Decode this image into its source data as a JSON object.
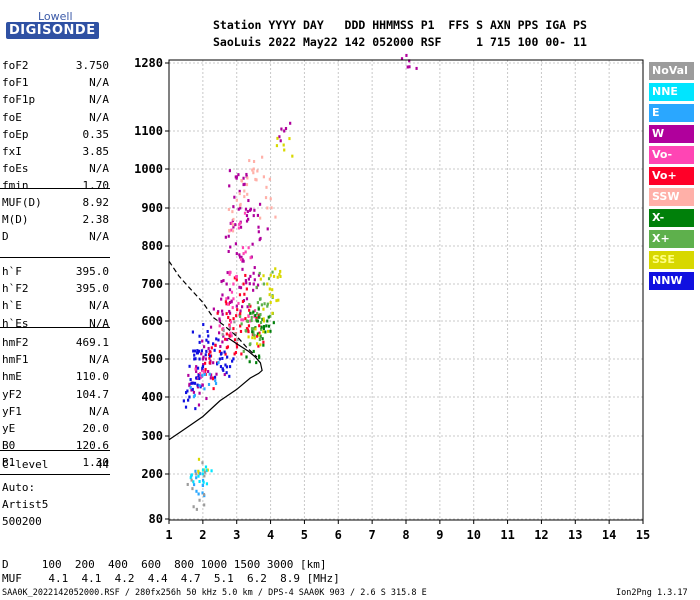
{
  "logo": {
    "top": "Lowell",
    "bottom": "DIGISONDE"
  },
  "header": {
    "line1": "Station YYYY DAY   DDD HHMMSS P1  FFS S AXN PPS IGA PS",
    "line2": "SaoLuis 2022 May22 142 052000 RSF     1 715 100 00- 11"
  },
  "params_group1": [
    {
      "k": "foF2",
      "v": "3.750"
    },
    {
      "k": "foF1",
      "v": "N/A"
    },
    {
      "k": "foF1p",
      "v": "N/A"
    },
    {
      "k": "foE",
      "v": "N/A"
    },
    {
      "k": "foEp",
      "v": "0.35"
    },
    {
      "k": "fxI",
      "v": "3.85"
    },
    {
      "k": "foEs",
      "v": "N/A"
    },
    {
      "k": "fmin",
      "v": "1.70"
    }
  ],
  "params_group2": [
    {
      "k": "MUF(D)",
      "v": "8.92"
    },
    {
      "k": "M(D)",
      "v": "2.38"
    },
    {
      "k": "D",
      "v": "N/A"
    }
  ],
  "params_group3": [
    {
      "k": "h`F",
      "v": "395.0"
    },
    {
      "k": "h`F2",
      "v": "395.0"
    },
    {
      "k": "h`E",
      "v": "N/A"
    },
    {
      "k": "h`Es",
      "v": "N/A"
    }
  ],
  "params_group4": [
    {
      "k": "hmF2",
      "v": "469.1"
    },
    {
      "k": "hmF1",
      "v": "N/A"
    },
    {
      "k": "hmE",
      "v": "110.0"
    },
    {
      "k": "yF2",
      "v": "104.7"
    },
    {
      "k": "yF1",
      "v": "N/A"
    },
    {
      "k": "yE",
      "v": "20.0"
    },
    {
      "k": "B0",
      "v": "120.6"
    },
    {
      "k": "B1",
      "v": "1.30"
    }
  ],
  "params_group5": [
    {
      "k": "C-level",
      "v": "44"
    }
  ],
  "auto": {
    "label": "Auto:",
    "artist": "Artist5",
    "version": "500200"
  },
  "legend": [
    {
      "label": "NoVal",
      "color": "#9c9c9c"
    },
    {
      "label": "NNE",
      "color": "#00e5ff"
    },
    {
      "label": "E",
      "color": "#2aa7ff"
    },
    {
      "label": "W",
      "color": "#b0009c"
    },
    {
      "label": "Vo-",
      "color": "#ff45b4"
    },
    {
      "label": "Vo+",
      "color": "#ff0028"
    },
    {
      "label": "SSW",
      "color": "#ffb0a8"
    },
    {
      "label": "X-",
      "color": "#00800a"
    },
    {
      "label": "X+",
      "color": "#5eb04c"
    },
    {
      "label": "SSE",
      "color": "#d8d800"
    },
    {
      "label": "NNW",
      "color": "#1010e0"
    }
  ],
  "footer": {
    "d_line": "D     100  200  400  600  800 1000 1500 3000 [km]",
    "muf_line": "MUF    4.1  4.1  4.2  4.4  4.7  5.1  6.2  8.9 [MHz]",
    "info_left": "SAA0K_2022142052000.RSF / 280fx256h 50 kHz 5.0 km / DPS-4 SAA0K 903 / 2.6 S 315.8 E",
    "info_right": "Ion2Png 1.3.17"
  },
  "chart_data": {
    "type": "scatter",
    "x_range": [
      1,
      15
    ],
    "y_range": [
      80,
      1280
    ],
    "x_ticks": [
      1,
      2,
      3,
      4,
      5,
      6,
      7,
      8,
      9,
      10,
      11,
      12,
      13,
      14,
      15
    ],
    "y_ticks": [
      80,
      200,
      300,
      400,
      500,
      600,
      700,
      800,
      900,
      1000,
      1100,
      1280
    ],
    "y_scale": "nonlinear (virtual height, km)",
    "grid": true,
    "profile_solid": [
      [
        1.0,
        290
      ],
      [
        1.5,
        320
      ],
      [
        2.0,
        350
      ],
      [
        2.5,
        390
      ],
      [
        3.0,
        420
      ],
      [
        3.4,
        450
      ],
      [
        3.65,
        462
      ],
      [
        3.75,
        470
      ],
      [
        3.7,
        490
      ],
      [
        3.55,
        505
      ],
      [
        3.35,
        520
      ],
      [
        3.0,
        540
      ],
      [
        2.75,
        555
      ]
    ],
    "profile_dashed": [
      [
        1.0,
        760
      ],
      [
        1.3,
        720
      ],
      [
        1.6,
        690
      ],
      [
        2.0,
        650
      ],
      [
        2.3,
        610
      ],
      [
        2.6,
        590
      ],
      [
        3.0,
        560
      ],
      [
        3.3,
        530
      ],
      [
        3.6,
        505
      ]
    ],
    "echo_clusters": [
      {
        "series": "W",
        "points": [
          [
            3.0,
            980
          ],
          [
            3.2,
            960
          ],
          [
            3.1,
            900
          ],
          [
            3.3,
            880
          ],
          [
            2.9,
            850
          ],
          [
            3.0,
            780
          ],
          [
            3.2,
            760
          ],
          [
            3.4,
            720
          ],
          [
            2.7,
            700
          ],
          [
            2.8,
            650
          ],
          [
            3.0,
            640
          ],
          [
            3.3,
            660
          ],
          [
            3.5,
            700
          ],
          [
            2.5,
            600
          ],
          [
            2.6,
            560
          ],
          [
            2.2,
            520
          ],
          [
            2.0,
            500
          ],
          [
            1.8,
            480
          ],
          [
            1.6,
            430
          ],
          [
            1.9,
            410
          ],
          [
            2.4,
            460
          ],
          [
            4.4,
            1100
          ],
          [
            8.1,
            1270
          ],
          [
            3.7,
            820
          ],
          [
            3.5,
            880
          ]
        ]
      },
      {
        "series": "Vo+",
        "points": [
          [
            2.8,
            560
          ],
          [
            2.9,
            580
          ],
          [
            3.1,
            620
          ],
          [
            3.3,
            580
          ],
          [
            3.0,
            540
          ],
          [
            2.5,
            520
          ],
          [
            2.2,
            490
          ],
          [
            2.7,
            620
          ],
          [
            3.4,
            640
          ],
          [
            3.6,
            560
          ],
          [
            3.2,
            700
          ],
          [
            2.3,
            450
          ]
        ]
      },
      {
        "series": "Vo-",
        "points": [
          [
            3.0,
            720
          ],
          [
            3.2,
            780
          ],
          [
            2.9,
            660
          ],
          [
            3.4,
            600
          ],
          [
            3.1,
            860
          ],
          [
            2.6,
            580
          ],
          [
            2.0,
            470
          ]
        ]
      },
      {
        "series": "NNW",
        "points": [
          [
            1.7,
            420
          ],
          [
            1.8,
            450
          ],
          [
            2.0,
            480
          ],
          [
            2.1,
            520
          ],
          [
            1.9,
            560
          ],
          [
            2.3,
            540
          ],
          [
            1.6,
            400
          ],
          [
            2.5,
            500
          ],
          [
            2.6,
            470
          ],
          [
            1.9,
            500
          ],
          [
            2.8,
            480
          ]
        ]
      },
      {
        "series": "X+",
        "points": [
          [
            3.5,
            580
          ],
          [
            3.6,
            620
          ],
          [
            3.7,
            660
          ],
          [
            3.8,
            700
          ],
          [
            3.9,
            640
          ],
          [
            3.4,
            540
          ],
          [
            3.3,
            600
          ]
        ]
      },
      {
        "series": "X-",
        "points": [
          [
            3.6,
            600
          ],
          [
            3.7,
            560
          ],
          [
            3.8,
            580
          ],
          [
            3.5,
            520
          ],
          [
            3.9,
            600
          ]
        ]
      },
      {
        "series": "SSE",
        "points": [
          [
            3.9,
            700
          ],
          [
            4.1,
            720
          ],
          [
            4.0,
            650
          ],
          [
            3.8,
            600
          ],
          [
            4.4,
            1050
          ],
          [
            2.0,
            210
          ],
          [
            3.6,
            540
          ]
        ]
      },
      {
        "series": "SSW",
        "points": [
          [
            2.9,
            870
          ],
          [
            3.0,
            920
          ],
          [
            3.3,
            960
          ],
          [
            3.5,
            1000
          ],
          [
            3.8,
            980
          ],
          [
            3.9,
            900
          ]
        ]
      },
      {
        "series": "E",
        "points": [
          [
            1.8,
            190
          ],
          [
            2.0,
            170
          ],
          [
            2.2,
            460
          ],
          [
            1.9,
            430
          ]
        ]
      },
      {
        "series": "NNE",
        "points": [
          [
            1.9,
            180
          ],
          [
            2.0,
            200
          ]
        ]
      },
      {
        "series": "NoVal",
        "points": [
          [
            1.8,
            200
          ],
          [
            1.9,
            130
          ],
          [
            2.8,
            580
          ]
        ]
      }
    ]
  }
}
